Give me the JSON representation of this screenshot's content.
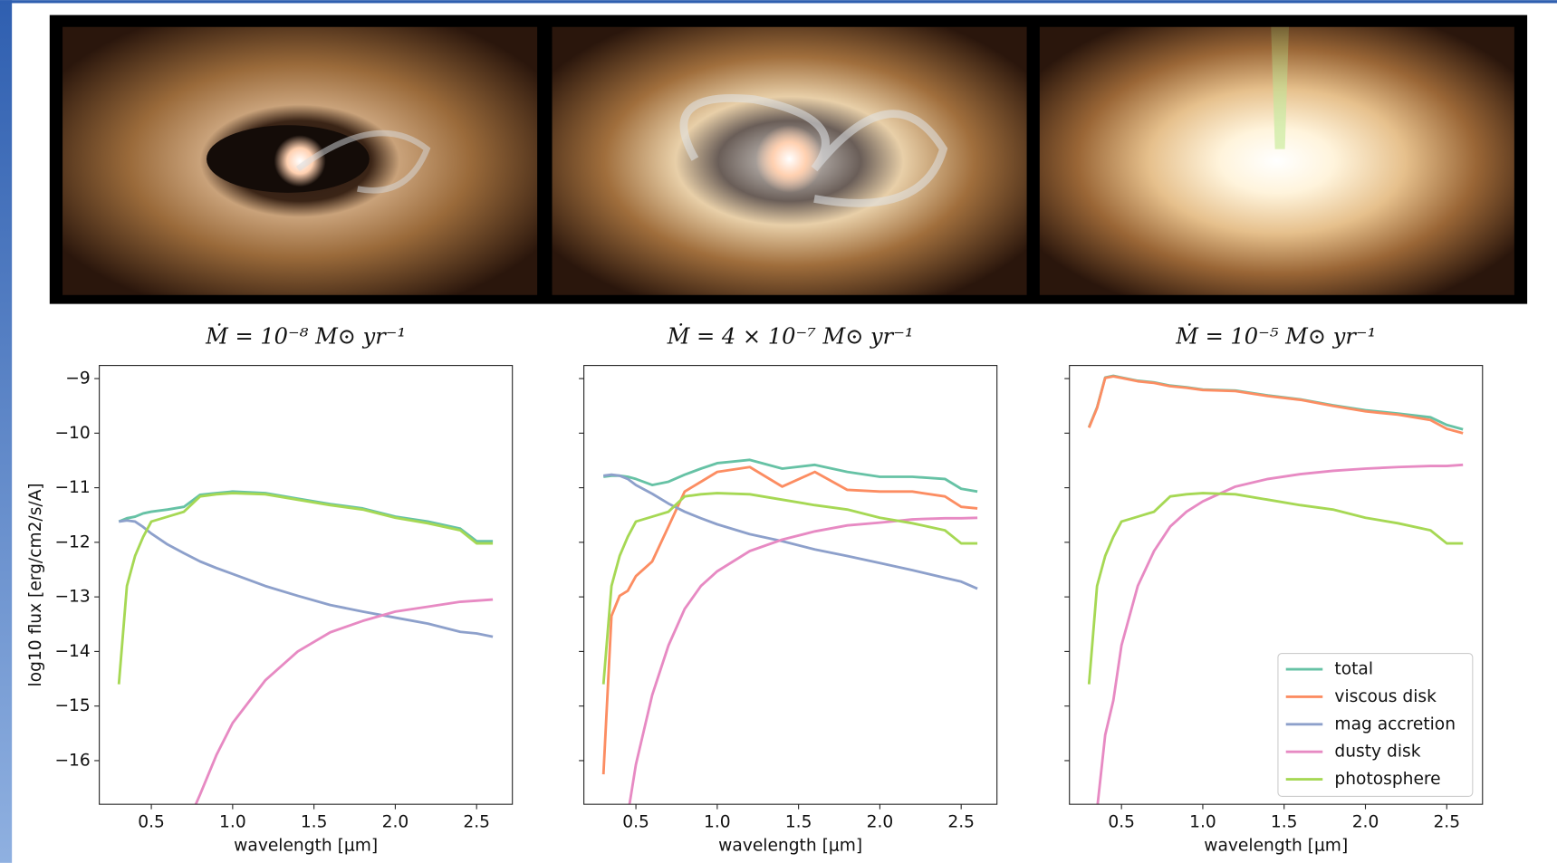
{
  "chart_data": [
    {
      "type": "line",
      "title": "Ṁ = 10⁻⁸ M⊙ yr⁻¹",
      "xlabel": "wavelength [μm]",
      "ylabel": "log10 flux [erg/cm2/s/A]",
      "xlim": [
        0.18,
        2.72
      ],
      "ylim": [
        -16.8,
        -8.76
      ],
      "xticks": [
        0.5,
        {
          "value": 1,
          "label": "1.0"
        },
        1.5,
        {
          "value": 2,
          "label": "2.0"
        },
        2.5
      ],
      "yticks": [
        {
          "value": -9,
          "label": "−9"
        },
        {
          "value": -10,
          "label": "−10"
        },
        {
          "value": -11,
          "label": "−11"
        },
        {
          "value": -12,
          "label": "−12"
        },
        {
          "value": -13,
          "label": "−13"
        },
        {
          "value": -14,
          "label": "−14"
        },
        {
          "value": -15,
          "label": "−15"
        },
        {
          "value": -16,
          "label": "−16"
        }
      ],
      "ytick_labels": true,
      "x": [
        0.3,
        0.35,
        0.4,
        0.45,
        0.5,
        0.6,
        0.7,
        0.8,
        0.9,
        1.0,
        1.2,
        1.4,
        1.6,
        1.8,
        2.0,
        2.2,
        2.4,
        2.5,
        2.6
      ],
      "series": [
        {
          "color": "#66c2a5",
          "values": [
            -11.62,
            -11.56,
            -11.53,
            -11.47,
            -11.44,
            -11.4,
            -11.35,
            -11.13,
            -11.1,
            -11.07,
            -11.1,
            -11.2,
            -11.3,
            -11.38,
            -11.53,
            -11.62,
            -11.75,
            -11.98,
            -11.98
          ]
        },
        {
          "color": "#8da0cb",
          "values": [
            -11.62,
            -11.6,
            -11.62,
            -11.72,
            -11.84,
            -12.04,
            -12.2,
            -12.35,
            -12.47,
            -12.58,
            -12.8,
            -12.98,
            -13.15,
            -13.27,
            -13.38,
            -13.49,
            -13.64,
            -13.67,
            -13.73
          ]
        },
        {
          "color": "#e78ac3",
          "values": [
            null,
            null,
            null,
            null,
            null,
            null,
            -17.3,
            -16.62,
            -15.9,
            -15.31,
            -14.53,
            -14.0,
            -13.65,
            -13.44,
            -13.27,
            -13.18,
            -13.09,
            -13.07,
            -13.05
          ]
        },
        {
          "color": "#a6d854",
          "values": [
            -14.6,
            -12.8,
            -12.25,
            -11.9,
            -11.62,
            -11.53,
            -11.44,
            -11.16,
            -11.12,
            -11.1,
            -11.12,
            -11.22,
            -11.32,
            -11.4,
            -11.55,
            -11.65,
            -11.78,
            -12.02,
            -12.02
          ]
        }
      ]
    },
    {
      "type": "line",
      "title": "Ṁ = 4 × 10⁻⁷ M⊙ yr⁻¹",
      "xlabel": "wavelength [μm]",
      "xlim": [
        0.18,
        2.72
      ],
      "ylim": [
        -16.8,
        -8.76
      ],
      "xticks": [
        0.5,
        {
          "value": 1,
          "label": "1.0"
        },
        1.5,
        {
          "value": 2,
          "label": "2.0"
        },
        2.5
      ],
      "yticks": [
        -9,
        -10,
        -11,
        -12,
        -13,
        -14,
        -15,
        -16
      ],
      "ytick_labels": false,
      "x": [
        0.3,
        0.35,
        0.4,
        0.45,
        0.5,
        0.6,
        0.7,
        0.8,
        0.9,
        1.0,
        1.2,
        1.4,
        1.6,
        1.8,
        2.0,
        2.2,
        2.4,
        2.5,
        2.6
      ],
      "series": [
        {
          "color": "#66c2a5",
          "values": [
            -10.8,
            -10.78,
            -10.78,
            -10.8,
            -10.84,
            -10.95,
            -10.89,
            -10.76,
            -10.65,
            -10.55,
            -10.49,
            -10.65,
            -10.58,
            -10.71,
            -10.8,
            -10.8,
            -10.84,
            -11.02,
            -11.07
          ]
        },
        {
          "color": "#fc8d62",
          "values": [
            -16.25,
            -13.35,
            -12.98,
            -12.89,
            -12.62,
            -12.35,
            -11.71,
            -11.07,
            -10.89,
            -10.71,
            -10.62,
            -10.98,
            -10.71,
            -11.04,
            -11.07,
            -11.07,
            -11.16,
            -11.35,
            -11.38
          ]
        },
        {
          "color": "#8da0cb",
          "values": [
            -10.78,
            -10.76,
            -10.78,
            -10.84,
            -10.95,
            -11.11,
            -11.29,
            -11.44,
            -11.56,
            -11.67,
            -11.85,
            -11.98,
            -12.13,
            -12.25,
            -12.38,
            -12.51,
            -12.65,
            -12.72,
            -12.85
          ]
        },
        {
          "color": "#e78ac3",
          "values": [
            null,
            null,
            -17.5,
            -17.0,
            -16.07,
            -14.8,
            -13.89,
            -13.22,
            -12.8,
            -12.53,
            -12.16,
            -11.95,
            -11.8,
            -11.69,
            -11.64,
            -11.58,
            -11.56,
            -11.56,
            -11.55
          ]
        },
        {
          "color": "#a6d854",
          "values": [
            -14.6,
            -12.8,
            -12.25,
            -11.9,
            -11.62,
            -11.53,
            -11.44,
            -11.16,
            -11.12,
            -11.1,
            -11.12,
            -11.22,
            -11.32,
            -11.4,
            -11.55,
            -11.65,
            -11.78,
            -12.02,
            -12.02
          ]
        }
      ]
    },
    {
      "type": "line",
      "title": "Ṁ = 10⁻⁵ M⊙ yr⁻¹",
      "xlabel": "wavelength [μm]",
      "xlim": [
        0.18,
        2.72
      ],
      "ylim": [
        -16.8,
        -8.76
      ],
      "xticks": [
        0.5,
        {
          "value": 1,
          "label": "1.0"
        },
        1.5,
        {
          "value": 2,
          "label": "2.0"
        },
        2.5
      ],
      "yticks": [
        -9,
        -10,
        -11,
        -12,
        -13,
        -14,
        -15,
        -16
      ],
      "ytick_labels": false,
      "legend": "lower right",
      "x": [
        0.3,
        0.35,
        0.4,
        0.45,
        0.5,
        0.6,
        0.7,
        0.8,
        0.9,
        1.0,
        1.2,
        1.4,
        1.6,
        1.8,
        2.0,
        2.2,
        2.4,
        2.5,
        2.6
      ],
      "series": [
        {
          "name": "total",
          "color": "#66c2a5",
          "values": [
            -9.89,
            -9.53,
            -8.98,
            -8.95,
            -8.98,
            -9.04,
            -9.07,
            -9.13,
            -9.16,
            -9.2,
            -9.22,
            -9.31,
            -9.38,
            -9.49,
            -9.58,
            -9.64,
            -9.71,
            -9.85,
            -9.93
          ]
        },
        {
          "name": "viscous disk",
          "color": "#fc8d62",
          "values": [
            -9.9,
            -9.54,
            -8.99,
            -8.96,
            -8.99,
            -9.05,
            -9.08,
            -9.14,
            -9.17,
            -9.21,
            -9.23,
            -9.32,
            -9.39,
            -9.5,
            -9.6,
            -9.66,
            -9.76,
            -9.92,
            -10.0
          ]
        },
        {
          "name": "mag accretion",
          "color": "#8da0cb",
          "values": [
            null,
            null,
            null,
            null,
            null,
            null,
            null,
            null,
            null,
            null,
            null,
            null,
            null,
            null,
            null,
            null,
            null,
            null,
            null
          ]
        },
        {
          "name": "dusty disk",
          "color": "#e78ac3",
          "values": [
            -17.5,
            -16.9,
            -15.53,
            -14.9,
            -13.89,
            -12.8,
            -12.16,
            -11.71,
            -11.44,
            -11.25,
            -10.98,
            -10.84,
            -10.75,
            -10.69,
            -10.65,
            -10.62,
            -10.6,
            -10.6,
            -10.58
          ]
        },
        {
          "name": "photosphere",
          "color": "#a6d854",
          "values": [
            -14.6,
            -12.8,
            -12.25,
            -11.9,
            -11.62,
            -11.53,
            -11.44,
            -11.16,
            -11.12,
            -11.1,
            -11.12,
            -11.22,
            -11.32,
            -11.4,
            -11.55,
            -11.65,
            -11.78,
            -12.02,
            -12.02
          ]
        }
      ]
    }
  ]
}
